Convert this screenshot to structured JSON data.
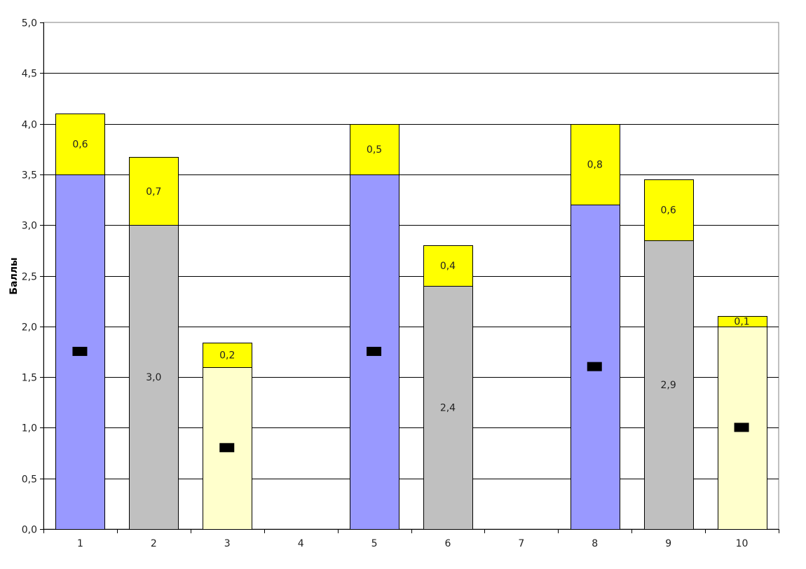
{
  "chart_data": {
    "type": "bar",
    "stacked": true,
    "ylabel": "Баллы",
    "xlabel": "",
    "ylim": [
      0,
      5
    ],
    "yticks": [
      "0,0",
      "0,5",
      "1,0",
      "1,5",
      "2,0",
      "2,5",
      "3,0",
      "3,5",
      "4,0",
      "4,5",
      "5,0"
    ],
    "categories": [
      "1",
      "2",
      "3",
      "4",
      "5",
      "6",
      "7",
      "8",
      "9",
      "10"
    ],
    "grid": true,
    "series": [
      {
        "color": "#9999FF",
        "values": [
          3.5,
          null,
          null,
          null,
          3.5,
          null,
          null,
          3.2,
          null,
          null
        ],
        "labels_hidden": true
      },
      {
        "color": "#C0C0C0",
        "values": [
          null,
          3.0,
          null,
          null,
          null,
          2.4,
          null,
          null,
          2.85,
          null
        ],
        "labels": [
          null,
          "3,0",
          null,
          null,
          null,
          "2,4",
          null,
          null,
          "2,9",
          null
        ]
      },
      {
        "color": "#FFFFCC",
        "values": [
          null,
          null,
          1.6,
          null,
          null,
          null,
          null,
          null,
          null,
          2.0
        ],
        "labels_hidden": true
      },
      {
        "color": "#FFFF00",
        "values": [
          0.6,
          0.67,
          0.24,
          null,
          0.5,
          0.4,
          null,
          0.8,
          0.6,
          0.1
        ],
        "labels": [
          "0,6",
          "0,7",
          "0,2",
          null,
          "0,5",
          "0,4",
          null,
          "0,8",
          "0,6",
          "0,1"
        ]
      }
    ],
    "markers": {
      "color": "#000000",
      "description_values_at": "midpoint of base segment"
    }
  }
}
